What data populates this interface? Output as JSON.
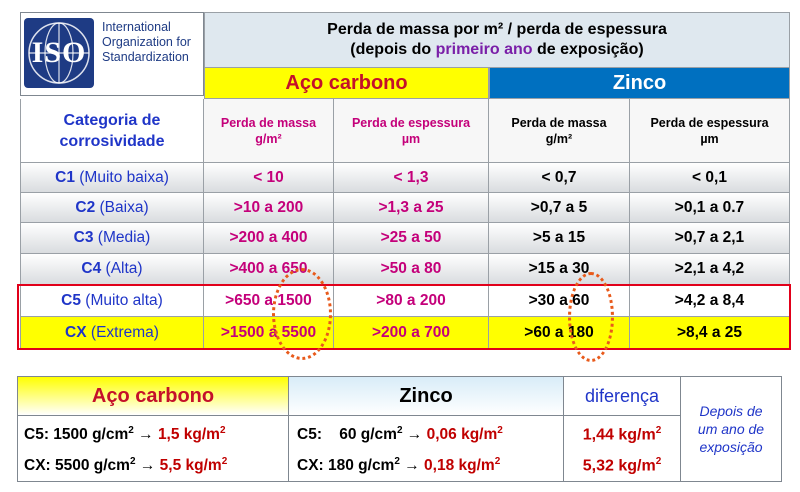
{
  "logo": {
    "iso": "ISO",
    "org_lines": [
      "International",
      "Organization for",
      "Standardization"
    ]
  },
  "header": {
    "line1": "Perda de massa por m² / perda de espessura",
    "line2_prefix": "(depois do ",
    "line2_highlight": "primeiro ano",
    "line2_suffix": " de exposição)"
  },
  "groups": {
    "aco": "Aço carbono",
    "zinco": "Zinco"
  },
  "category_header": "Categoria de corrosividade",
  "subheaders": [
    {
      "line1": "Perda de massa",
      "line2": "g/m²"
    },
    {
      "line1": "Perda de espessura",
      "line2": "µm"
    },
    {
      "line1": "Perda de massa",
      "line2": "g/m²"
    },
    {
      "line1": "Perda de espessura",
      "line2": "µm"
    }
  ],
  "rows": [
    {
      "code": "C1",
      "name": "(Muito baixa)",
      "values": [
        "< 10",
        "< 1,3",
        "< 0,7",
        "< 0,1"
      ]
    },
    {
      "code": "C2",
      "name": "(Baixa)",
      "values": [
        ">10 a 200",
        ">1,3 a 25",
        ">0,7 a 5",
        ">0,1 a 0.7"
      ]
    },
    {
      "code": "C3",
      "name": "(Media)",
      "values": [
        ">200 a 400",
        ">25 a 50",
        ">5 a 15",
        ">0,7 a 2,1"
      ]
    },
    {
      "code": "C4",
      "name": "(Alta)",
      "values": [
        ">400 a 650",
        ">50 a 80",
        ">15 a 30",
        ">2,1 a 4,2"
      ]
    },
    {
      "code": "C5",
      "name": "(Muito alta)",
      "values": [
        ">650 a 1500",
        ">80 a 200",
        ">30 a 60",
        ">4,2 a 8,4"
      ]
    },
    {
      "code": "CX",
      "name": "(Extrema)",
      "values": [
        ">1500 a 5500",
        ">200 a 700",
        ">60 a 180",
        ">8,4 a 25"
      ]
    }
  ],
  "bottom": {
    "aco_title": "Aço carbono",
    "zinco_title": "Zinco",
    "dif_title": "diferença",
    "depois": [
      "Depois de",
      "um ano de",
      "exposição"
    ],
    "aco_lines": [
      {
        "prefix": "C5: 1500  g/cm",
        "sup": "2",
        "arrow": " → ",
        "result": "1,5 kg/m",
        "rsup": "2"
      },
      {
        "prefix": "CX: 5500 g/cm",
        "sup": "2",
        "arrow": " → ",
        "result": "5,5 kg/m",
        "rsup": "2"
      }
    ],
    "zinco_lines": [
      {
        "prefix": "C5:    60 g/cm",
        "sup": "2",
        "arrow": " → ",
        "result": "0,06 kg/m",
        "rsup": "2"
      },
      {
        "prefix": "CX: 180 g/cm",
        "sup": "2",
        "arrow": " → ",
        "result": "0,18 kg/m",
        "rsup": "2"
      }
    ],
    "dif_lines": [
      {
        "result": "1,44 kg/m",
        "rsup": "2"
      },
      {
        "result": "5,32 kg/m",
        "rsup": "2"
      }
    ]
  }
}
